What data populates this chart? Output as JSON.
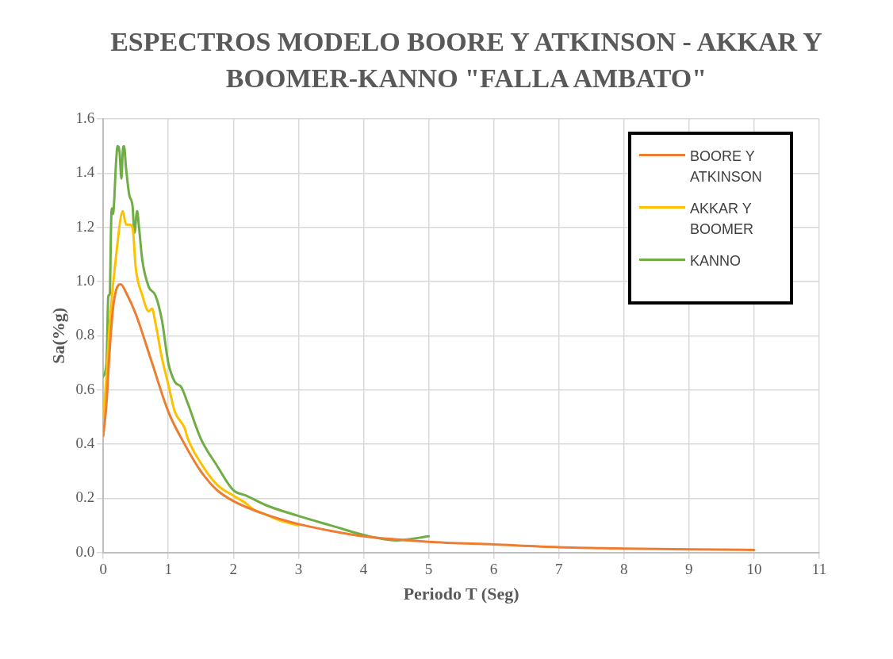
{
  "chart_data": {
    "type": "line",
    "title": "ESPECTROS MODELO BOORE Y ATKINSON - AKKAR Y BOOMER-KANNO \"FALLA AMBATO\"",
    "xlabel": "Periodo T (Seg)",
    "ylabel": "Sa(%g)",
    "xlim": [
      0,
      11
    ],
    "ylim": [
      0,
      1.6
    ],
    "xticks": [
      0,
      1,
      2,
      3,
      4,
      5,
      6,
      7,
      8,
      9,
      10,
      11
    ],
    "yticks": [
      {
        "value": 0,
        "label": "0.0"
      },
      {
        "value": 0.2,
        "label": "0.2"
      },
      {
        "value": 0.4,
        "label": "0.4"
      },
      {
        "value": 0.6,
        "label": "0.6"
      },
      {
        "value": 0.8,
        "label": "0.8"
      },
      {
        "value": 1,
        "label": "1.0"
      },
      {
        "value": 1.2,
        "label": "1.2"
      },
      {
        "value": 1.4,
        "label": "1.4"
      },
      {
        "value": 1.6,
        "label": "1.6"
      }
    ],
    "grid": true,
    "legend": "top right",
    "marker": "none",
    "line_style": "solid",
    "series": [
      {
        "name": "BOORE Y ATKINSON",
        "color": "#ed7d31",
        "x": [
          0,
          0.05,
          0.1,
          0.15,
          0.2,
          0.27,
          0.35,
          0.5,
          0.75,
          1,
          1.25,
          1.5,
          1.75,
          2,
          2.5,
          3,
          3.5,
          4,
          5,
          6,
          7,
          8,
          9,
          10
        ],
        "values": [
          0.43,
          0.55,
          0.75,
          0.9,
          0.97,
          0.99,
          0.96,
          0.88,
          0.7,
          0.52,
          0.4,
          0.3,
          0.23,
          0.19,
          0.14,
          0.105,
          0.08,
          0.06,
          0.04,
          0.03,
          0.02,
          0.015,
          0.012,
          0.01
        ]
      },
      {
        "name": "AKKAR Y BOOMER",
        "color": "#ffc000",
        "x": [
          0,
          0.05,
          0.1,
          0.2,
          0.3,
          0.35,
          0.4,
          0.45,
          0.5,
          0.6,
          0.7,
          0.75,
          0.8,
          0.9,
          1,
          1.1,
          1.25,
          1.3,
          1.5,
          1.75,
          2,
          2.2,
          2.3,
          2.5,
          2.7,
          3
        ],
        "values": [
          0.5,
          0.65,
          0.85,
          1.1,
          1.26,
          1.21,
          1.21,
          1.2,
          1.05,
          0.95,
          0.89,
          0.9,
          0.85,
          0.72,
          0.62,
          0.52,
          0.46,
          0.42,
          0.33,
          0.25,
          0.21,
          0.18,
          0.16,
          0.14,
          0.12,
          0.1
        ]
      },
      {
        "name": "KANNO",
        "color": "#70ad47",
        "x": [
          0,
          0.05,
          0.08,
          0.1,
          0.12,
          0.13,
          0.15,
          0.2,
          0.22,
          0.25,
          0.28,
          0.3,
          0.32,
          0.35,
          0.4,
          0.45,
          0.48,
          0.52,
          0.55,
          0.6,
          0.7,
          0.8,
          0.9,
          1,
          1.1,
          1.2,
          1.3,
          1.5,
          1.75,
          2,
          2.2,
          2.5,
          3,
          3.5,
          4,
          4.5,
          5
        ],
        "values": [
          0.65,
          0.7,
          0.95,
          0.95,
          1.2,
          1.27,
          1.25,
          1.45,
          1.5,
          1.48,
          1.38,
          1.48,
          1.5,
          1.42,
          1.32,
          1.28,
          1.18,
          1.26,
          1.2,
          1.08,
          0.98,
          0.95,
          0.86,
          0.7,
          0.63,
          0.61,
          0.55,
          0.42,
          0.32,
          0.23,
          0.21,
          0.175,
          0.135,
          0.1,
          0.065,
          0.045,
          0.06
        ]
      }
    ]
  }
}
